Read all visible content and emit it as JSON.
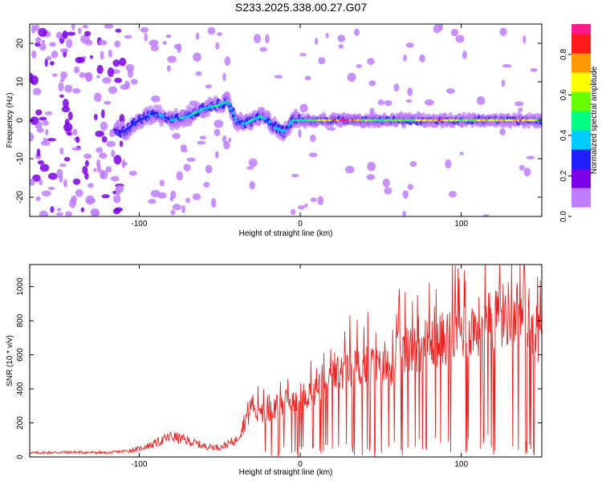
{
  "title": "S233.2025.338.00.27.G07",
  "chart_data": [
    {
      "type": "heatmap",
      "name": "spectrogram",
      "xlabel": "Height of straight line (km)",
      "ylabel": "Frequency (Hz)",
      "xlim": [
        -168,
        150
      ],
      "ylim": [
        -25,
        25
      ],
      "xticks": [
        -100,
        0,
        100
      ],
      "xtick_labels": [
        "-100",
        "0",
        "100"
      ],
      "yticks": [
        -20,
        -10,
        0,
        10,
        20
      ],
      "ytick_labels": [
        "-20",
        "-10",
        "0",
        "10",
        "20"
      ],
      "ridge": {
        "description": "frequency of maximum spectral amplitude vs height",
        "x": [
          -120,
          -110,
          -100,
          -90,
          -80,
          -70,
          -60,
          -50,
          -45,
          -40,
          -35,
          -30,
          -25,
          -20,
          -15,
          -10,
          -5,
          0,
          10,
          20,
          30,
          40,
          50,
          60,
          70,
          80,
          90,
          100,
          110,
          120,
          130,
          140,
          150
        ],
        "y": [
          -2,
          -3,
          0,
          2,
          0,
          1,
          3,
          4,
          5,
          0,
          -1,
          0,
          1,
          0,
          -2,
          -3,
          0,
          0,
          0,
          0,
          0,
          0,
          0,
          0,
          0,
          0,
          0,
          0,
          0,
          0,
          0,
          0,
          0
        ],
        "amplitude": [
          0.2,
          0.3,
          0.3,
          0.35,
          0.4,
          0.45,
          0.5,
          0.5,
          0.45,
          0.4,
          0.4,
          0.45,
          0.45,
          0.4,
          0.4,
          0.4,
          0.45,
          0.5,
          0.6,
          0.8,
          0.95,
          0.65,
          0.55,
          0.6,
          0.65,
          0.85,
          0.75,
          0.6,
          0.7,
          0.8,
          0.75,
          0.85,
          0.6
        ]
      }
    },
    {
      "type": "colorbar",
      "label": "Normalized spectral amplitude",
      "range": [
        0,
        0.95
      ],
      "ticks": [
        0.0,
        0.2,
        0.4,
        0.6,
        0.8
      ],
      "tick_labels": [
        "0.0",
        "0.2",
        "0.4",
        "0.6",
        "0.8"
      ],
      "colormap": [
        "#ffffff",
        "#c07cff",
        "#7a00e8",
        "#2020ff",
        "#00ccff",
        "#00ff80",
        "#66ff00",
        "#ffff00",
        "#ff9900",
        "#ff1a1a",
        "#ff1a8c"
      ]
    },
    {
      "type": "line",
      "name": "snr",
      "xlabel": "Height of straight line (km)",
      "ylabel": "SNR (10 * v/v)",
      "xlim": [
        -168,
        150
      ],
      "ylim": [
        0,
        1130
      ],
      "xticks": [
        -100,
        0,
        100
      ],
      "xtick_labels": [
        "-100",
        "0",
        "100"
      ],
      "yticks": [
        0,
        200,
        400,
        600,
        800,
        1000
      ],
      "ytick_labels": [
        "0",
        "200",
        "400",
        "600",
        "800",
        "1000"
      ],
      "color": "#ee2222",
      "envelope": {
        "x": [
          -168,
          -140,
          -120,
          -110,
          -100,
          -90,
          -80,
          -70,
          -60,
          -50,
          -40,
          -35,
          -30,
          -25,
          -20,
          -10,
          0,
          10,
          20,
          30,
          40,
          45,
          50,
          55,
          60,
          70,
          80,
          90,
          100,
          110,
          120,
          130,
          140,
          150
        ],
        "y": [
          30,
          35,
          30,
          40,
          60,
          100,
          150,
          120,
          80,
          70,
          120,
          250,
          380,
          280,
          300,
          380,
          420,
          450,
          560,
          600,
          620,
          640,
          600,
          620,
          700,
          750,
          780,
          820,
          870,
          900,
          940,
          1000,
          1000,
          800
        ]
      }
    }
  ]
}
